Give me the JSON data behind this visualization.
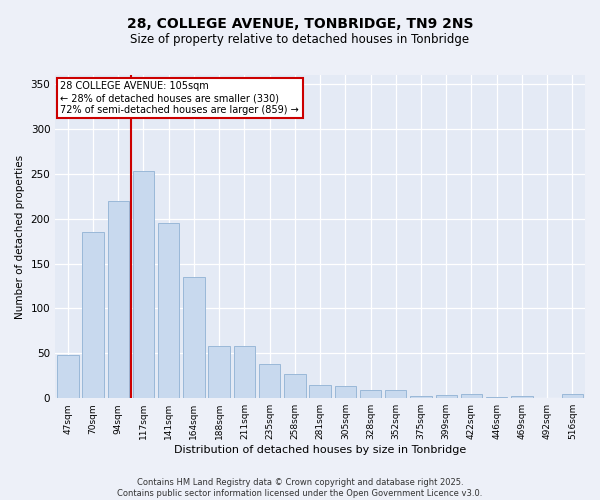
{
  "title_line1": "28, COLLEGE AVENUE, TONBRIDGE, TN9 2NS",
  "title_line2": "Size of property relative to detached houses in Tonbridge",
  "xlabel": "Distribution of detached houses by size in Tonbridge",
  "ylabel": "Number of detached properties",
  "categories": [
    "47sqm",
    "70sqm",
    "94sqm",
    "117sqm",
    "141sqm",
    "164sqm",
    "188sqm",
    "211sqm",
    "235sqm",
    "258sqm",
    "281sqm",
    "305sqm",
    "328sqm",
    "352sqm",
    "375sqm",
    "399sqm",
    "422sqm",
    "446sqm",
    "469sqm",
    "492sqm",
    "516sqm"
  ],
  "values": [
    48,
    185,
    220,
    253,
    195,
    135,
    58,
    58,
    38,
    27,
    15,
    14,
    9,
    9,
    3,
    4,
    5,
    1,
    2,
    0,
    5
  ],
  "bar_color": "#c8d9ee",
  "bar_edge_color": "#9ab8d8",
  "vline_x_index": 2.5,
  "vline_color": "#cc0000",
  "annotation_text": "28 COLLEGE AVENUE: 105sqm\n← 28% of detached houses are smaller (330)\n72% of semi-detached houses are larger (859) →",
  "annotation_box_color": "#ffffff",
  "annotation_box_edge_color": "#cc0000",
  "ylim": [
    0,
    360
  ],
  "yticks": [
    0,
    50,
    100,
    150,
    200,
    250,
    300,
    350
  ],
  "footer_line1": "Contains HM Land Registry data © Crown copyright and database right 2025.",
  "footer_line2": "Contains public sector information licensed under the Open Government Licence v3.0.",
  "bg_color": "#edf0f8",
  "plot_bg_color": "#e4eaf5",
  "grid_color": "#ffffff"
}
